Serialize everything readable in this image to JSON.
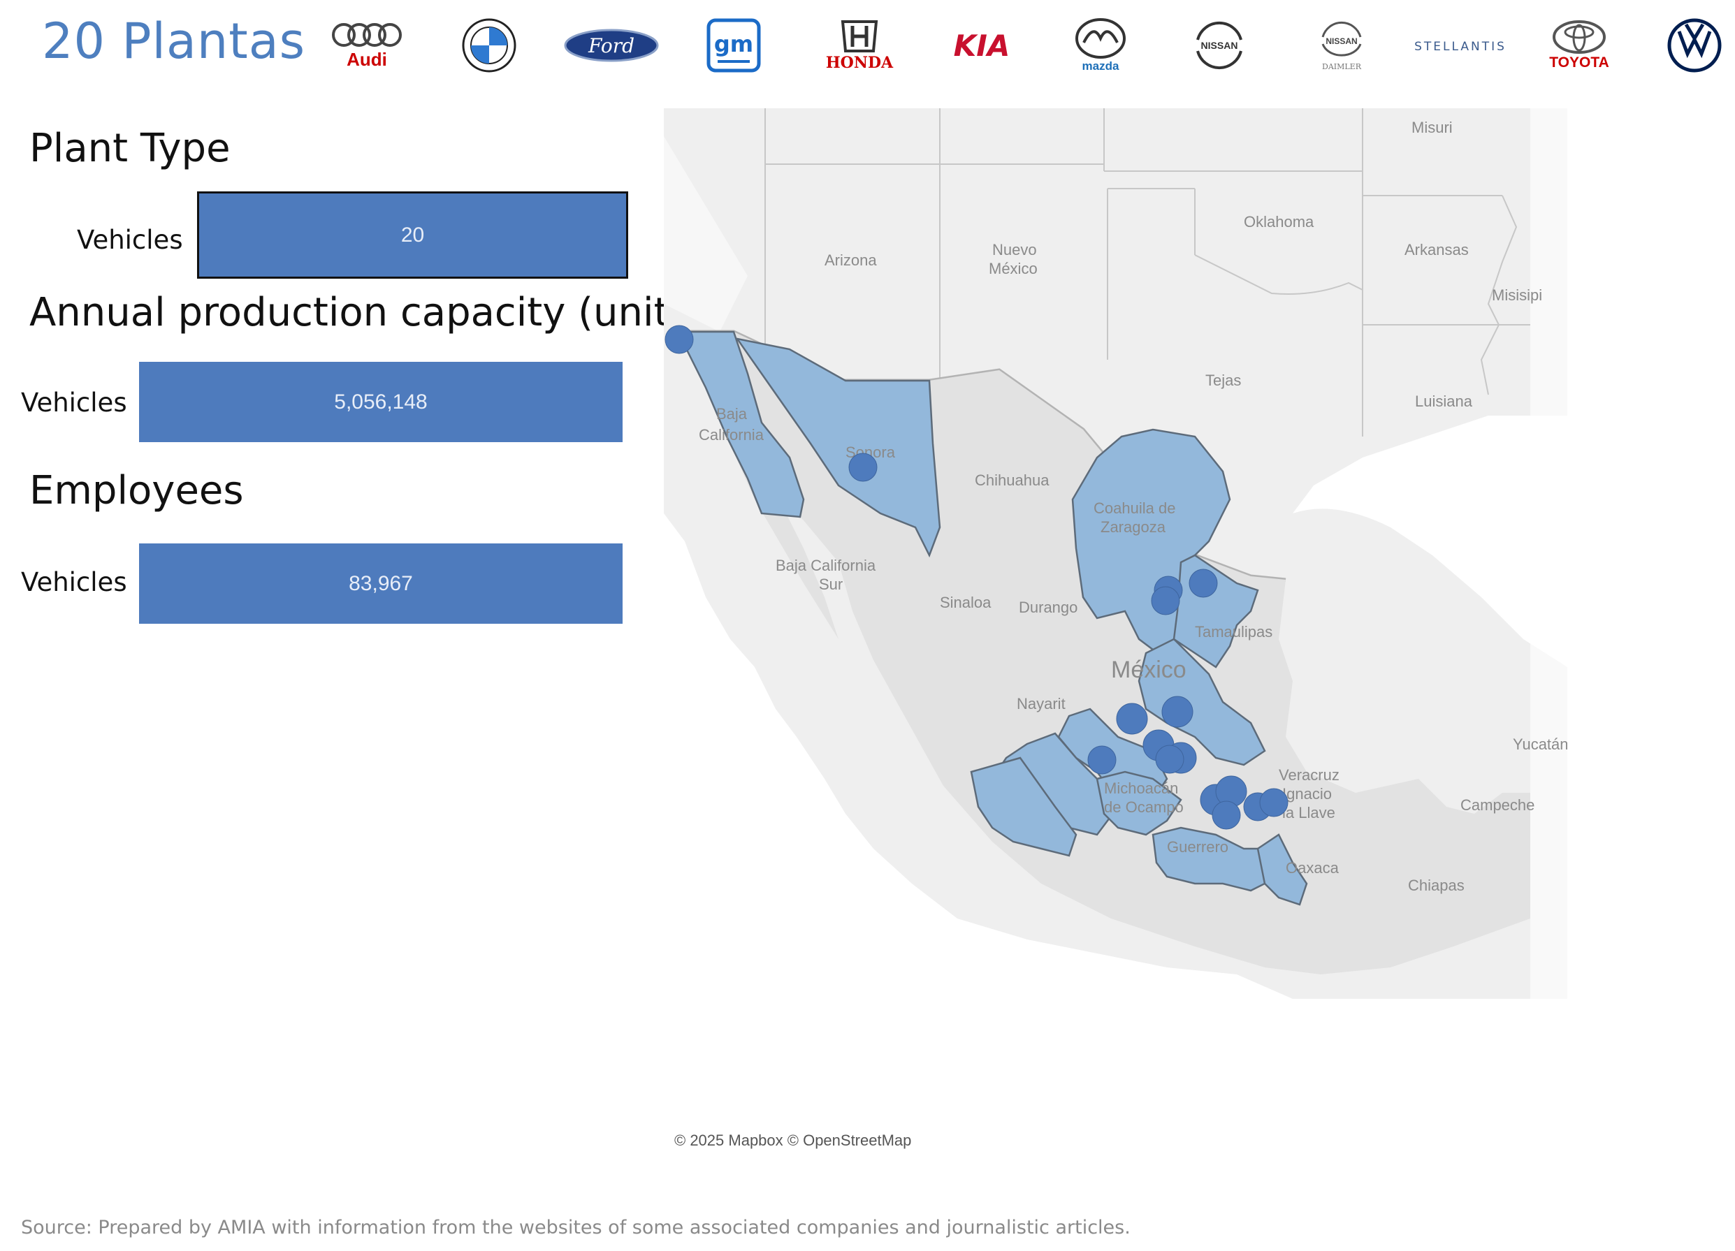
{
  "header": {
    "title": "20 Plantas",
    "brands": [
      {
        "name": "Audi",
        "icon": "audi-logo-icon",
        "color": "#cc0000"
      },
      {
        "name": "BMW",
        "icon": "bmw-logo-icon",
        "color": "#0066b1"
      },
      {
        "name": "Ford",
        "icon": "ford-logo-icon",
        "color": "#1f3e85"
      },
      {
        "name": "gm",
        "icon": "gm-logo-icon",
        "color": "#1b6bc7"
      },
      {
        "name": "HONDA",
        "icon": "honda-logo-icon",
        "color": "#cc0000"
      },
      {
        "name": "KIA",
        "icon": "kia-logo-icon",
        "color": "#c8102e"
      },
      {
        "name": "mazda",
        "icon": "mazda-logo-icon",
        "color": "#1d6fb8"
      },
      {
        "name": "NISSAN",
        "icon": "nissan-logo-icon",
        "color": "#333333"
      },
      {
        "name": "NISSAN",
        "sub": "DAIMLER",
        "icon": "nissan-daimler-logo-icon",
        "color": "#333333"
      },
      {
        "name": "STELLANTIS",
        "icon": "stellantis-logo-icon",
        "color": "#3a5a8c"
      },
      {
        "name": "TOYOTA",
        "icon": "toyota-logo-icon",
        "color": "#cc0000"
      },
      {
        "name": "VW",
        "icon": "vw-logo-icon",
        "color": "#001e50"
      }
    ]
  },
  "panels": {
    "plant_type": {
      "title": "Plant Type",
      "row_label": "Vehicles",
      "value": "20"
    },
    "capacity": {
      "title": "Annual production capacity (units)",
      "row_label": "Vehicles",
      "value": "5,056,148"
    },
    "employees": {
      "title": "Employees",
      "row_label": "Vehicles",
      "value": "83,967"
    }
  },
  "map": {
    "labels": [
      "Misuri",
      "Oklahoma",
      "Arkansas",
      "Arizona",
      "Nuevo",
      "México",
      "Misisipi",
      "Tejas",
      "Luisiana",
      "Baja",
      "California",
      "Sonora",
      "Chihuahua",
      "Coahuila de",
      "Zaragoza",
      "Baja California",
      "Sur",
      "Sinaloa",
      "Durango",
      "Tamaulipas",
      "México",
      "Nayarit",
      "Michoacán",
      "de Ocampo",
      "Veracruz",
      "Ignacio",
      "la Llave",
      "Yucatán",
      "Campeche",
      "Guerrero",
      "Oaxaca",
      "Chiapas"
    ],
    "highlight_color": "#93b8db",
    "plant_color": "#4e7bbd",
    "credit": "© 2025 Mapbox © OpenStreetMap"
  },
  "footer": {
    "source": "Source: Prepared by AMIA with information from the websites of some associated companies and journalistic articles."
  }
}
